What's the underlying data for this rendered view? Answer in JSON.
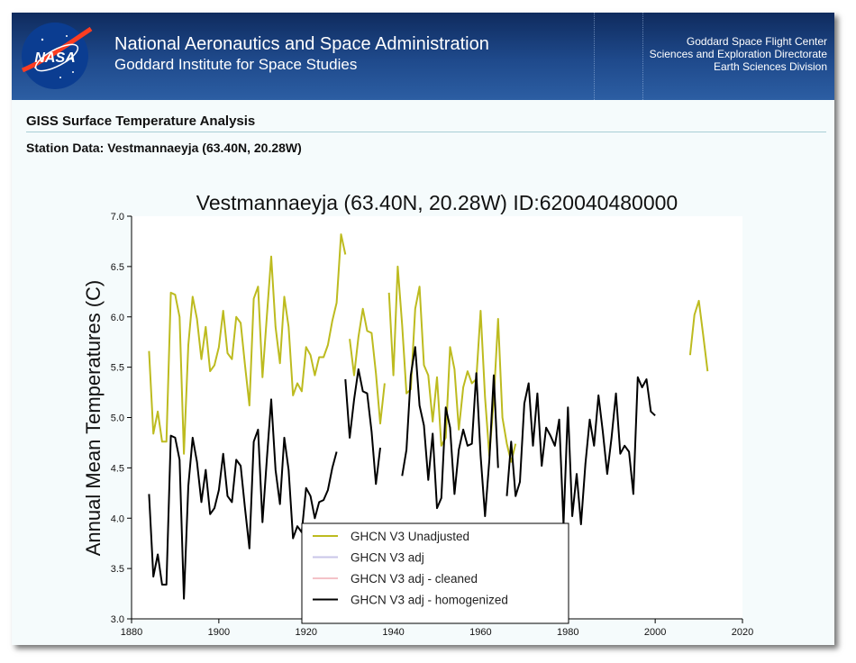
{
  "header": {
    "org_line1": "National Aeronautics and Space Administration",
    "org_line2": "Goddard Institute for Space Studies",
    "right_lines": [
      "Goddard Space Flight Center",
      "Sciences and Exploration Directorate",
      "Earth Sciences Division"
    ],
    "logo_text": "NASA",
    "banner_color": "#1f4a8c"
  },
  "page": {
    "title": "GISS Surface Temperature Analysis",
    "station_heading": "Station Data: Vestmannaeyja (63.40N, 20.28W)"
  },
  "chart_data": {
    "type": "line",
    "title": "Vestmannaeyja (63.40N, 20.28W) ID:620040480000",
    "xlabel": "",
    "ylabel": "Annual Mean Temperatures (C)",
    "xlim": [
      1880,
      2020
    ],
    "ylim": [
      3.0,
      7.0
    ],
    "xticks": [
      1880,
      1900,
      1920,
      1940,
      1960,
      1980,
      2000,
      2020
    ],
    "yticks": [
      "3.0",
      "3.5",
      "4.0",
      "4.5",
      "5.0",
      "5.5",
      "6.0",
      "6.5",
      "7.0"
    ],
    "grid": false,
    "legend_placement": "bottom-center",
    "series": [
      {
        "name": "GHCN V3 Unadjusted",
        "color": "#bdbb1f",
        "segments": [
          [
            [
              1884,
              5.66
            ],
            [
              1885,
              4.84
            ],
            [
              1886,
              5.06
            ],
            [
              1887,
              4.76
            ],
            [
              1888,
              4.76
            ],
            [
              1889,
              6.24
            ],
            [
              1890,
              6.22
            ],
            [
              1891,
              6.0
            ],
            [
              1892,
              4.64
            ],
            [
              1893,
              5.72
            ],
            [
              1894,
              6.2
            ],
            [
              1895,
              5.98
            ],
            [
              1896,
              5.58
            ],
            [
              1897,
              5.9
            ],
            [
              1898,
              5.46
            ],
            [
              1899,
              5.52
            ],
            [
              1900,
              5.7
            ],
            [
              1901,
              6.06
            ],
            [
              1902,
              5.64
            ],
            [
              1903,
              5.58
            ],
            [
              1904,
              6.0
            ],
            [
              1905,
              5.94
            ],
            [
              1906,
              5.52
            ],
            [
              1907,
              5.12
            ],
            [
              1908,
              6.18
            ],
            [
              1909,
              6.3
            ],
            [
              1910,
              5.4
            ],
            [
              1911,
              6.0
            ],
            [
              1912,
              6.6
            ],
            [
              1913,
              5.9
            ],
            [
              1914,
              5.54
            ],
            [
              1915,
              6.2
            ],
            [
              1916,
              5.9
            ],
            [
              1917,
              5.22
            ],
            [
              1918,
              5.34
            ],
            [
              1919,
              5.26
            ],
            [
              1920,
              5.7
            ],
            [
              1921,
              5.62
            ],
            [
              1922,
              5.42
            ],
            [
              1923,
              5.6
            ],
            [
              1924,
              5.6
            ],
            [
              1925,
              5.72
            ],
            [
              1926,
              5.96
            ],
            [
              1927,
              6.14
            ],
            [
              1928,
              6.82
            ],
            [
              1929,
              6.62
            ]
          ],
          [
            [
              1930,
              5.78
            ],
            [
              1931,
              5.42
            ],
            [
              1932,
              5.8
            ],
            [
              1933,
              6.08
            ],
            [
              1934,
              5.86
            ],
            [
              1935,
              5.84
            ],
            [
              1936,
              5.44
            ],
            [
              1937,
              4.94
            ],
            [
              1938,
              5.34
            ]
          ],
          [
            [
              1939,
              6.24
            ],
            [
              1940,
              5.42
            ],
            [
              1941,
              6.5
            ],
            [
              1942,
              5.92
            ],
            [
              1943,
              5.24
            ],
            [
              1944,
              5.28
            ],
            [
              1945,
              6.08
            ],
            [
              1946,
              6.3
            ],
            [
              1947,
              5.52
            ],
            [
              1948,
              5.42
            ],
            [
              1949,
              4.96
            ],
            [
              1950,
              5.4
            ],
            [
              1951,
              4.72
            ],
            [
              1952,
              4.8
            ],
            [
              1953,
              5.7
            ],
            [
              1954,
              5.48
            ],
            [
              1955,
              4.88
            ],
            [
              1956,
              5.3
            ],
            [
              1957,
              5.46
            ],
            [
              1958,
              5.34
            ],
            [
              1959,
              5.38
            ],
            [
              1960,
              6.06
            ],
            [
              1961,
              5.2
            ],
            [
              1962,
              4.62
            ],
            [
              1963,
              5.18
            ],
            [
              1964,
              5.98
            ],
            [
              1965,
              5.0
            ],
            [
              1966,
              4.74
            ],
            [
              1967,
              4.56
            ],
            [
              1968,
              4.74
            ]
          ],
          [
            [
              2008,
              5.62
            ],
            [
              2009,
              6.02
            ],
            [
              2010,
              6.16
            ],
            [
              2011,
              5.82
            ],
            [
              2012,
              5.46
            ]
          ]
        ]
      },
      {
        "name": "GHCN V3 adj",
        "color": "#c9c6e8",
        "segments": []
      },
      {
        "name": "GHCN V3 adj - cleaned",
        "color": "#f4c2c8",
        "segments": []
      },
      {
        "name": "GHCN V3 adj - homogenized",
        "color": "#000000",
        "segments": [
          [
            [
              1884,
              4.24
            ],
            [
              1885,
              3.42
            ],
            [
              1886,
              3.64
            ],
            [
              1887,
              3.34
            ],
            [
              1888,
              3.34
            ],
            [
              1889,
              4.82
            ],
            [
              1890,
              4.8
            ],
            [
              1891,
              4.58
            ],
            [
              1892,
              3.2
            ],
            [
              1893,
              4.32
            ],
            [
              1894,
              4.8
            ],
            [
              1895,
              4.56
            ],
            [
              1896,
              4.16
            ],
            [
              1897,
              4.48
            ],
            [
              1898,
              4.04
            ],
            [
              1899,
              4.1
            ],
            [
              1900,
              4.28
            ],
            [
              1901,
              4.64
            ],
            [
              1902,
              4.22
            ],
            [
              1903,
              4.16
            ],
            [
              1904,
              4.58
            ],
            [
              1905,
              4.52
            ],
            [
              1906,
              4.1
            ],
            [
              1907,
              3.7
            ],
            [
              1908,
              4.76
            ],
            [
              1909,
              4.88
            ],
            [
              1910,
              3.96
            ],
            [
              1911,
              4.58
            ],
            [
              1912,
              5.18
            ],
            [
              1913,
              4.48
            ],
            [
              1914,
              4.14
            ],
            [
              1915,
              4.8
            ],
            [
              1916,
              4.48
            ],
            [
              1917,
              3.8
            ],
            [
              1918,
              3.92
            ],
            [
              1919,
              3.86
            ],
            [
              1920,
              4.3
            ],
            [
              1921,
              4.22
            ],
            [
              1922,
              4.0
            ],
            [
              1923,
              4.16
            ],
            [
              1924,
              4.18
            ],
            [
              1925,
              4.28
            ],
            [
              1926,
              4.5
            ],
            [
              1927,
              4.66
            ]
          ],
          [
            [
              1929,
              5.38
            ],
            [
              1930,
              4.8
            ],
            [
              1931,
              5.18
            ],
            [
              1932,
              5.48
            ],
            [
              1933,
              5.26
            ],
            [
              1934,
              5.24
            ],
            [
              1935,
              4.86
            ],
            [
              1936,
              4.34
            ],
            [
              1937,
              4.7
            ]
          ],
          [
            [
              1942,
              4.42
            ],
            [
              1943,
              4.68
            ],
            [
              1944,
              5.42
            ],
            [
              1945,
              5.7
            ],
            [
              1946,
              5.12
            ],
            [
              1947,
              4.92
            ],
            [
              1948,
              4.38
            ],
            [
              1949,
              4.84
            ],
            [
              1950,
              4.1
            ],
            [
              1951,
              4.2
            ],
            [
              1952,
              5.1
            ],
            [
              1953,
              4.9
            ],
            [
              1954,
              4.24
            ],
            [
              1955,
              4.68
            ],
            [
              1956,
              4.88
            ],
            [
              1957,
              4.72
            ],
            [
              1958,
              4.74
            ],
            [
              1959,
              5.44
            ],
            [
              1960,
              4.62
            ],
            [
              1961,
              4.02
            ],
            [
              1962,
              4.58
            ],
            [
              1963,
              5.42
            ],
            [
              1964,
              4.5
            ]
          ],
          [
            [
              1966,
              4.22
            ],
            [
              1967,
              4.76
            ],
            [
              1968,
              4.22
            ],
            [
              1969,
              4.36
            ],
            [
              1970,
              5.14
            ],
            [
              1971,
              5.34
            ],
            [
              1972,
              4.72
            ],
            [
              1973,
              5.24
            ],
            [
              1974,
              4.52
            ],
            [
              1975,
              4.9
            ],
            [
              1976,
              4.82
            ],
            [
              1977,
              4.72
            ],
            [
              1978,
              4.98
            ],
            [
              1979,
              3.94
            ],
            [
              1980,
              5.1
            ],
            [
              1981,
              4.02
            ],
            [
              1982,
              4.44
            ],
            [
              1983,
              3.94
            ],
            [
              1984,
              4.54
            ],
            [
              1985,
              4.98
            ],
            [
              1986,
              4.72
            ],
            [
              1987,
              5.22
            ],
            [
              1988,
              4.86
            ],
            [
              1989,
              4.44
            ],
            [
              1990,
              4.8
            ],
            [
              1991,
              5.24
            ],
            [
              1992,
              4.64
            ],
            [
              1993,
              4.72
            ],
            [
              1994,
              4.66
            ],
            [
              1995,
              4.24
            ],
            [
              1996,
              5.4
            ],
            [
              1997,
              5.3
            ],
            [
              1998,
              5.38
            ],
            [
              1999,
              5.06
            ],
            [
              2000,
              5.02
            ]
          ]
        ]
      }
    ]
  }
}
